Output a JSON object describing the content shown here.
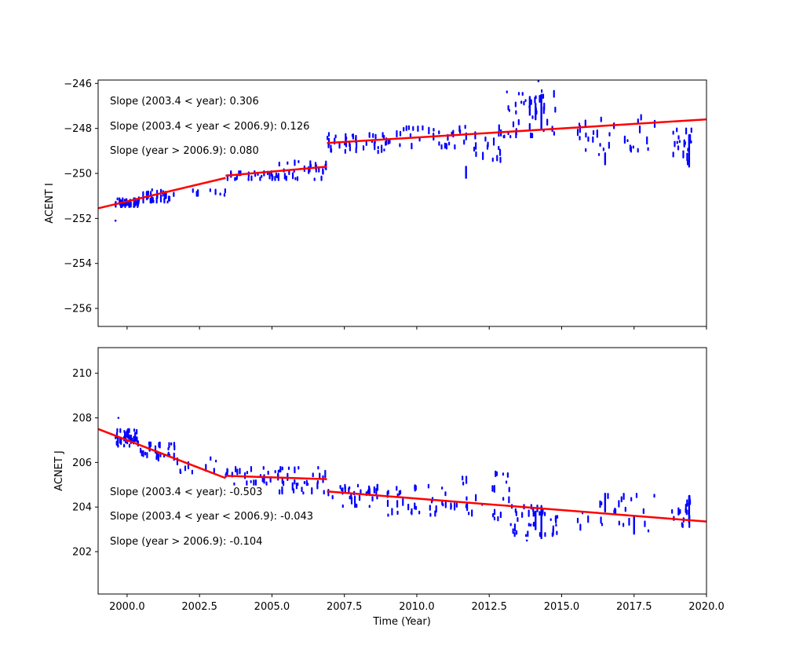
{
  "chart_data": [
    {
      "type": "scatter",
      "panel": "top",
      "ylabel": "ACENT I",
      "xlabel": "",
      "xlim": [
        1999,
        2020
      ],
      "ylim": [
        -256.8,
        -245.85
      ],
      "yticks": [
        -246,
        -248,
        -250,
        -252,
        -254,
        -256
      ],
      "ytick_labels": [
        "−246",
        "−248",
        "−250",
        "−252",
        "−254",
        "−256"
      ],
      "xticks": [
        2000,
        2002.5,
        2005,
        2007.5,
        2010,
        2012.5,
        2015,
        2017.5,
        2020
      ],
      "show_xtick_labels": false,
      "point_color": "#0000ff",
      "fit_color": "#ff0000",
      "annotations": [
        "Slope (2003.4 < year):  0.306",
        "Slope (2003.4 <  year < 2006.9): 0.126",
        "Slope (year > 2006.9):  0.080"
      ],
      "fit_segments": [
        {
          "x": [
            1999.0,
            2003.4
          ],
          "y": [
            -251.55,
            -250.2
          ]
        },
        {
          "x": [
            2003.4,
            2006.9
          ],
          "y": [
            -250.1,
            -249.7
          ]
        },
        {
          "x": [
            2006.9,
            2020.0
          ],
          "y": [
            -248.65,
            -247.6
          ]
        }
      ],
      "clusters": [
        {
          "x0": 1999.6,
          "x1": 2000.4,
          "y0": -251.5,
          "y1": -251.1,
          "n": 40
        },
        {
          "x0": 2000.4,
          "x1": 2001.7,
          "y0": -251.3,
          "y1": -250.7,
          "n": 30
        },
        {
          "x0": 2001.8,
          "x1": 2003.4,
          "y0": -251.0,
          "y1": -250.7,
          "n": 8
        },
        {
          "x0": 2003.4,
          "x1": 2005.0,
          "y0": -250.3,
          "y1": -249.9,
          "n": 20
        },
        {
          "x0": 2005.0,
          "x1": 2006.9,
          "y0": -250.3,
          "y1": -249.4,
          "n": 35
        },
        {
          "x0": 2006.9,
          "x1": 2009.0,
          "y0": -249.1,
          "y1": -248.2,
          "n": 40
        },
        {
          "x0": 2009.0,
          "x1": 2011.5,
          "y0": -248.9,
          "y1": -247.9,
          "n": 30
        },
        {
          "x0": 2011.5,
          "x1": 2013.0,
          "y0": -249.5,
          "y1": -247.8,
          "n": 20
        },
        {
          "x0": 2013.0,
          "x1": 2014.9,
          "y0": -248.4,
          "y1": -246.1,
          "n": 40
        },
        {
          "x0": 2015.5,
          "x1": 2018.4,
          "y0": -249.3,
          "y1": -247.4,
          "n": 30
        },
        {
          "x0": 2018.8,
          "x1": 2019.5,
          "y0": -249.6,
          "y1": -248.0,
          "n": 20
        }
      ],
      "columns": [
        {
          "x": 2011.7,
          "y0": -250.2,
          "y1": -249.7
        },
        {
          "x": 2013.9,
          "y0": -247.4,
          "y1": -246.6
        },
        {
          "x": 2014.3,
          "y0": -248.0,
          "y1": -246.5
        },
        {
          "x": 2016.5,
          "y0": -249.6,
          "y1": -249.1
        },
        {
          "x": 2019.4,
          "y0": -249.7,
          "y1": -248.3
        },
        {
          "x": 2014.1,
          "y0": -247.6,
          "y1": -246.9
        }
      ],
      "outliers": [
        {
          "x": 1999.6,
          "y": -252.1
        },
        {
          "x": 2014.2,
          "y": -245.9
        }
      ]
    },
    {
      "type": "scatter",
      "panel": "bottom",
      "ylabel": "ACNET J",
      "xlabel": "Time (Year)",
      "xlim": [
        1999,
        2020
      ],
      "ylim": [
        200.1,
        211.15
      ],
      "yticks": [
        202,
        204,
        206,
        208,
        210
      ],
      "ytick_labels": [
        "202",
        "204",
        "206",
        "208",
        "210"
      ],
      "xticks": [
        2000,
        2002.5,
        2005,
        2007.5,
        2010,
        2012.5,
        2015,
        2017.5,
        2020
      ],
      "xtick_labels": [
        "2000.0",
        "2002.5",
        "2005.0",
        "2007.5",
        "2010.0",
        "2012.5",
        "2015.0",
        "2017.5",
        "2020.0"
      ],
      "show_xtick_labels": true,
      "point_color": "#0000ff",
      "fit_color": "#ff0000",
      "annotations": [
        "Slope (2003.4 < year):  -0.503",
        "Slope (2003.4 <  year < 2006.9): -0.043",
        "Slope (year > 2006.9):  -0.104"
      ],
      "fit_segments": [
        {
          "x": [
            1999.0,
            2003.4
          ],
          "y": [
            207.5,
            205.3
          ]
        },
        {
          "x": [
            2003.4,
            2006.9
          ],
          "y": [
            205.4,
            205.25
          ]
        },
        {
          "x": [
            2006.9,
            2020.0
          ],
          "y": [
            204.7,
            203.35
          ]
        }
      ],
      "clusters": [
        {
          "x0": 1999.6,
          "x1": 2000.4,
          "y0": 206.7,
          "y1": 207.5,
          "n": 40
        },
        {
          "x0": 2000.4,
          "x1": 2001.7,
          "y0": 206.0,
          "y1": 206.9,
          "n": 30
        },
        {
          "x0": 2001.7,
          "x1": 2003.4,
          "y0": 205.5,
          "y1": 206.4,
          "n": 10
        },
        {
          "x0": 2003.4,
          "x1": 2005.0,
          "y0": 205.0,
          "y1": 205.8,
          "n": 25
        },
        {
          "x0": 2005.0,
          "x1": 2006.9,
          "y0": 204.6,
          "y1": 205.8,
          "n": 35
        },
        {
          "x0": 2006.9,
          "x1": 2009.0,
          "y0": 204.0,
          "y1": 205.0,
          "n": 35
        },
        {
          "x0": 2009.0,
          "x1": 2011.5,
          "y0": 203.6,
          "y1": 205.0,
          "n": 35
        },
        {
          "x0": 2011.5,
          "x1": 2013.2,
          "y0": 203.4,
          "y1": 205.6,
          "n": 25
        },
        {
          "x0": 2013.2,
          "x1": 2014.9,
          "y0": 202.7,
          "y1": 204.1,
          "n": 40
        },
        {
          "x0": 2015.5,
          "x1": 2018.4,
          "y0": 202.9,
          "y1": 204.6,
          "n": 25
        },
        {
          "x0": 2018.8,
          "x1": 2019.5,
          "y0": 203.1,
          "y1": 204.5,
          "n": 20
        }
      ],
      "columns": [
        {
          "x": 2014.3,
          "y0": 202.6,
          "y1": 204.0
        },
        {
          "x": 2014.1,
          "y0": 203.0,
          "y1": 203.8
        },
        {
          "x": 2019.4,
          "y0": 203.3,
          "y1": 204.5
        },
        {
          "x": 2016.5,
          "y0": 203.8,
          "y1": 204.6
        },
        {
          "x": 2017.5,
          "y0": 202.8,
          "y1": 203.6
        }
      ],
      "outliers": [
        {
          "x": 1999.7,
          "y": 208.0
        },
        {
          "x": 2013.8,
          "y": 202.5
        }
      ]
    }
  ]
}
